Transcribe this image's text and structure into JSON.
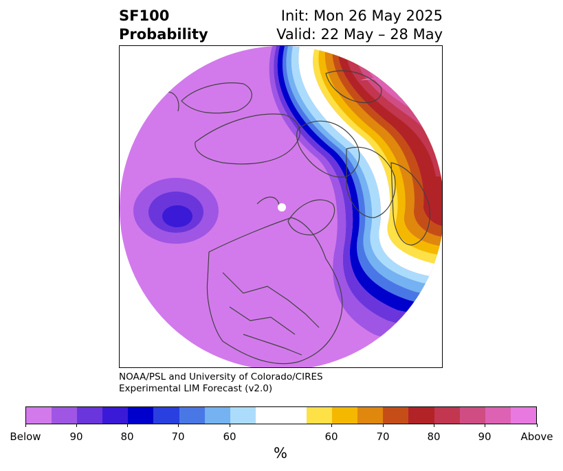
{
  "title": {
    "left_line1": "SF100",
    "left_line2": "Probability",
    "right_line1": "Init: Mon 26 May 2025",
    "right_line2": "Valid: 22 May – 28 May"
  },
  "credits": {
    "line1": "NOAA/PSL and University of Colorado/CIRES",
    "line2": "Experimental LIM Forecast (v2.0)"
  },
  "map": {
    "projection": "north-polar-stereographic",
    "regions": [
      "North America",
      "Arctic",
      "Europe",
      "North Pacific",
      "North Atlantic"
    ],
    "background_color": "#d27aeb",
    "accent_colors": {
      "below_max": "#3a1ad6",
      "above_max": "#b22328"
    }
  },
  "colorbar": {
    "unit": "%",
    "colors": [
      "#d27aeb",
      "#9f56e4",
      "#6a36dc",
      "#3a1ad6",
      "#0000cd",
      "#2a3fe0",
      "#4a77e6",
      "#74b2f2",
      "#acdcfc",
      "#ffffff",
      "#ffffff",
      "#fee047",
      "#f4b800",
      "#e0870e",
      "#c54e18",
      "#b22328",
      "#c2364f",
      "#d04d84",
      "#dd62b4",
      "#e879e0"
    ],
    "tick_labels": [
      "Below",
      "90",
      "80",
      "70",
      "60",
      "60",
      "70",
      "80",
      "90",
      "Above"
    ]
  }
}
